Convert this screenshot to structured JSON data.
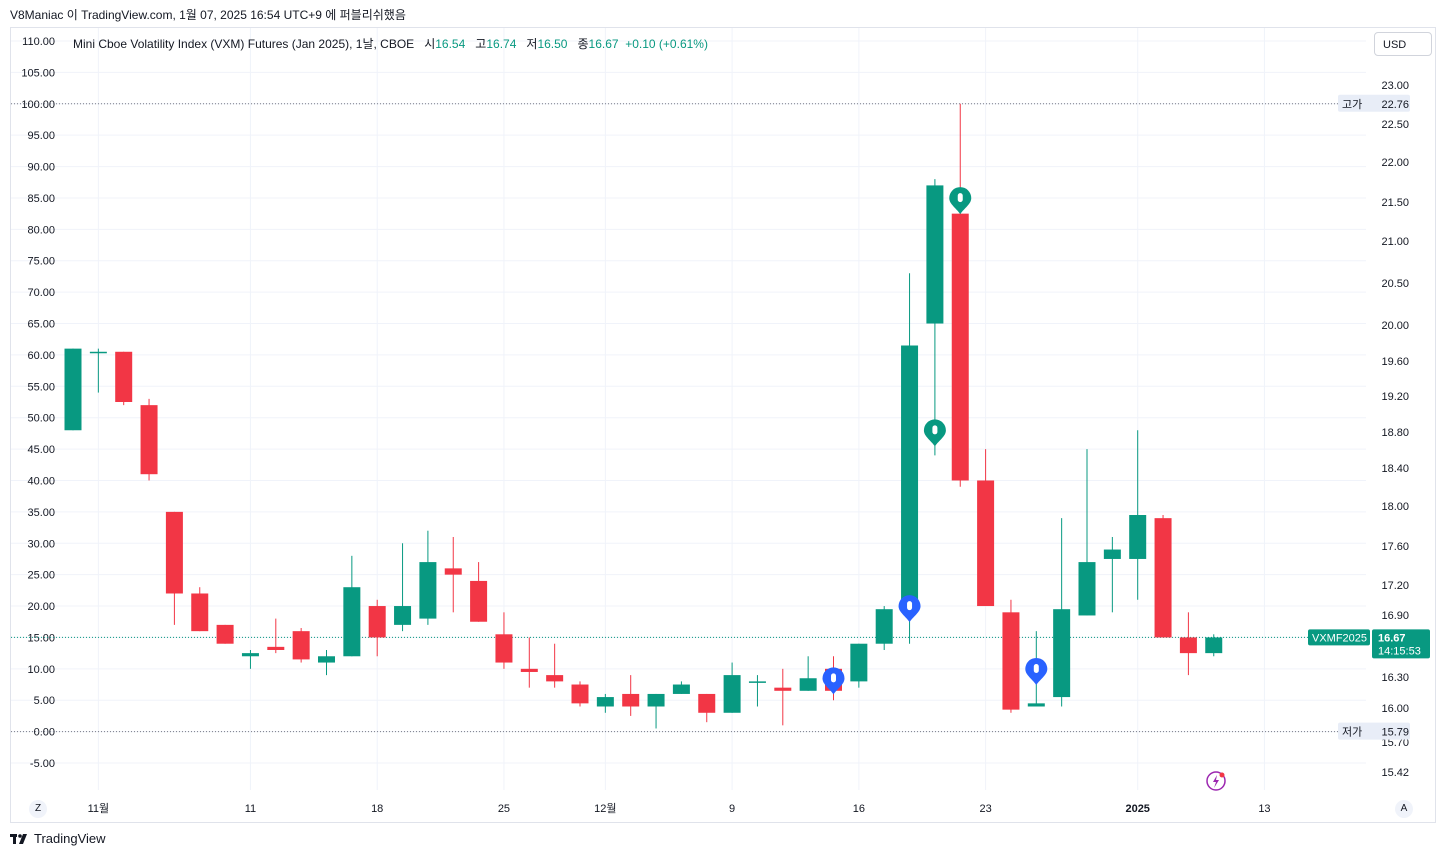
{
  "header": {
    "published_by": "V8Maniac 이 TradingView.com, 1월 07, 2025 16:54 UTC+9 에 퍼블리쉬했음"
  },
  "legend": {
    "symbol": "Mini Cboe Volatility Index (VXM) Futures (Jan 2025), 1날, CBOE",
    "open_label": "시",
    "open": "16.54",
    "high_label": "고",
    "high": "16.74",
    "low_label": "저",
    "low": "16.50",
    "close_label": "종",
    "close": "16.67",
    "change": "+0.10 (+0.61%)"
  },
  "currency_button": "USD",
  "left_corner_button": "Z",
  "right_corner_button": "A",
  "footer_logo": "TradingView",
  "price_tag": {
    "symbol": "VXMF2025",
    "price": "16.67",
    "countdown": "14:15:53",
    "color": "#089981"
  },
  "high_marker": {
    "label": "고가",
    "value": "22.76"
  },
  "low_marker": {
    "label": "저가",
    "value": "15.79"
  },
  "colors": {
    "up": "#089981",
    "down": "#f23645",
    "grid": "#f0f3fa",
    "marker_blue": "#2962ff"
  },
  "chart_data": {
    "type": "candlestick",
    "left_axis": {
      "ticks": [
        "110.00",
        "105.00",
        "100.00",
        "95.00",
        "90.00",
        "85.00",
        "80.00",
        "75.00",
        "70.00",
        "65.00",
        "60.00",
        "55.00",
        "50.00",
        "45.00",
        "40.00",
        "35.00",
        "30.00",
        "25.00",
        "20.00",
        "15.00",
        "10.00",
        "5.00",
        "0.00",
        "-5.00"
      ]
    },
    "right_axis": {
      "ticks": [
        "23.00",
        "22.50",
        "22.00",
        "21.50",
        "21.00",
        "20.50",
        "20.00",
        "19.60",
        "19.20",
        "18.80",
        "18.40",
        "18.00",
        "17.60",
        "17.20",
        "16.90",
        "16.30",
        "16.00",
        "15.70",
        "15.42"
      ]
    },
    "x_axis": {
      "ticks": [
        "11월",
        "11",
        "18",
        "25",
        "12월",
        "9",
        "16",
        "23",
        "2025",
        "13"
      ]
    },
    "candles": [
      {
        "o": 48,
        "h": 61,
        "l": 48,
        "c": 61
      },
      {
        "o": 60.5,
        "h": 61,
        "l": 54,
        "c": 60.5
      },
      {
        "o": 60.5,
        "h": 60.5,
        "l": 52,
        "c": 52.5
      },
      {
        "o": 52,
        "h": 53,
        "l": 40,
        "c": 41
      },
      {
        "o": 35,
        "h": 35,
        "l": 17,
        "c": 22
      },
      {
        "o": 22,
        "h": 23,
        "l": 16,
        "c": 16
      },
      {
        "o": 17,
        "h": 17,
        "l": 14,
        "c": 14
      },
      {
        "o": 12,
        "h": 13,
        "l": 10,
        "c": 12.5
      },
      {
        "o": 13.5,
        "h": 18,
        "l": 12.5,
        "c": 13
      },
      {
        "o": 16,
        "h": 16.5,
        "l": 11,
        "c": 11.5
      },
      {
        "o": 11,
        "h": 13,
        "l": 9,
        "c": 12
      },
      {
        "o": 12,
        "h": 28,
        "l": 12,
        "c": 23
      },
      {
        "o": 20,
        "h": 21,
        "l": 12,
        "c": 15
      },
      {
        "o": 17,
        "h": 30,
        "l": 16,
        "c": 20
      },
      {
        "o": 18,
        "h": 32,
        "l": 17,
        "c": 27
      },
      {
        "o": 26,
        "h": 31,
        "l": 19,
        "c": 25
      },
      {
        "o": 24,
        "h": 27,
        "l": 17.5,
        "c": 17.5
      },
      {
        "o": 15.5,
        "h": 19,
        "l": 10,
        "c": 11
      },
      {
        "o": 10,
        "h": 15,
        "l": 7,
        "c": 9.5
      },
      {
        "o": 9,
        "h": 14,
        "l": 7,
        "c": 8
      },
      {
        "o": 7.5,
        "h": 8,
        "l": 4,
        "c": 4.5
      },
      {
        "o": 4,
        "h": 6,
        "l": 3,
        "c": 5.5
      },
      {
        "o": 6,
        "h": 9,
        "l": 2.5,
        "c": 4
      },
      {
        "o": 4,
        "h": 6,
        "l": 0.5,
        "c": 6
      },
      {
        "o": 6,
        "h": 8,
        "l": 6,
        "c": 7.5
      },
      {
        "o": 6,
        "h": 6,
        "l": 1.5,
        "c": 3
      },
      {
        "o": 3,
        "h": 11,
        "l": 3,
        "c": 9
      },
      {
        "o": 8,
        "h": 9,
        "l": 4,
        "c": 8
      },
      {
        "o": 7,
        "h": 10,
        "l": 1,
        "c": 6.5
      },
      {
        "o": 6.5,
        "h": 12,
        "l": 6.5,
        "c": 8.5
      },
      {
        "o": 10,
        "h": 12,
        "l": 5,
        "c": 6.5
      },
      {
        "o": 8,
        "h": 14,
        "l": 7,
        "c": 14
      },
      {
        "o": 14,
        "h": 20,
        "l": 13,
        "c": 19.5
      },
      {
        "o": 19.5,
        "h": 73,
        "l": 14,
        "c": 61.5
      },
      {
        "o": 65,
        "h": 88,
        "l": 44,
        "c": 87
      },
      {
        "o": 82.5,
        "h": 100,
        "l": 39,
        "c": 40
      },
      {
        "o": 40,
        "h": 45,
        "l": 20,
        "c": 20
      },
      {
        "o": 19,
        "h": 21,
        "l": 3,
        "c": 3.5
      },
      {
        "o": 4,
        "h": 16,
        "l": 4,
        "c": 4.5
      },
      {
        "o": 5.5,
        "h": 34,
        "l": 4,
        "c": 19.5
      },
      {
        "o": 18.5,
        "h": 45,
        "l": 18.5,
        "c": 27
      },
      {
        "o": 27.5,
        "h": 31,
        "l": 19,
        "c": 29
      },
      {
        "o": 27.5,
        "h": 48,
        "l": 21,
        "c": 34.5
      },
      {
        "o": 34,
        "h": 34.5,
        "l": 15,
        "c": 15
      },
      {
        "o": 15,
        "h": 19,
        "l": 9,
        "c": 12.5
      },
      {
        "o": 12.5,
        "h": 15.5,
        "l": 12,
        "c": 15
      }
    ],
    "markers": [
      {
        "type": "pin",
        "candle": 33,
        "value": 19.5,
        "color": "#2962ff"
      },
      {
        "type": "pin",
        "candle": 34,
        "value": 47.5,
        "color": "#089981"
      },
      {
        "type": "pin",
        "candle": 35,
        "value": 84.5,
        "color": "#089981"
      },
      {
        "type": "pin",
        "candle": 30,
        "value": 8.0,
        "color": "#2962ff"
      },
      {
        "type": "pin",
        "candle": 38,
        "value": 9.5,
        "color": "#2962ff"
      }
    ]
  }
}
